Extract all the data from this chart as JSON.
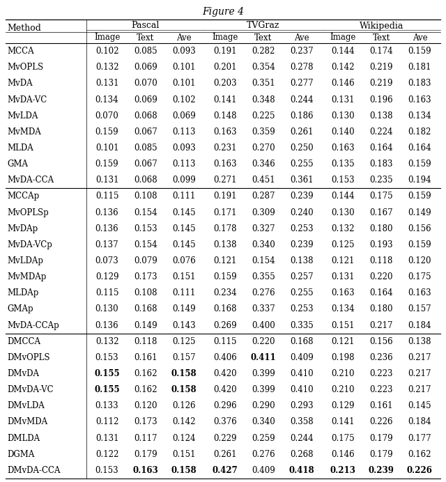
{
  "title": "Figure 4",
  "rows": [
    [
      "MCCA",
      "0.102",
      "0.085",
      "0.093",
      "0.191",
      "0.282",
      "0.237",
      "0.144",
      "0.174",
      "0.159",
      []
    ],
    [
      "MvOPLS",
      "0.132",
      "0.069",
      "0.101",
      "0.201",
      "0.354",
      "0.278",
      "0.142",
      "0.219",
      "0.181",
      []
    ],
    [
      "MvDA",
      "0.131",
      "0.070",
      "0.101",
      "0.203",
      "0.351",
      "0.277",
      "0.146",
      "0.219",
      "0.183",
      []
    ],
    [
      "MvDA-VC",
      "0.134",
      "0.069",
      "0.102",
      "0.141",
      "0.348",
      "0.244",
      "0.131",
      "0.196",
      "0.163",
      []
    ],
    [
      "MvLDA",
      "0.070",
      "0.068",
      "0.069",
      "0.148",
      "0.225",
      "0.186",
      "0.130",
      "0.138",
      "0.134",
      []
    ],
    [
      "MvMDA",
      "0.159",
      "0.067",
      "0.113",
      "0.163",
      "0.359",
      "0.261",
      "0.140",
      "0.224",
      "0.182",
      []
    ],
    [
      "MLDA",
      "0.101",
      "0.085",
      "0.093",
      "0.231",
      "0.270",
      "0.250",
      "0.163",
      "0.164",
      "0.164",
      []
    ],
    [
      "GMA",
      "0.159",
      "0.067",
      "0.113",
      "0.163",
      "0.346",
      "0.255",
      "0.135",
      "0.183",
      "0.159",
      []
    ],
    [
      "MvDA-CCA",
      "0.131",
      "0.068",
      "0.099",
      "0.271",
      "0.451",
      "0.361",
      "0.153",
      "0.235",
      "0.194",
      []
    ],
    [
      "MCCAp",
      "0.115",
      "0.108",
      "0.111",
      "0.191",
      "0.287",
      "0.239",
      "0.144",
      "0.175",
      "0.159",
      []
    ],
    [
      "MvOPLSp",
      "0.136",
      "0.154",
      "0.145",
      "0.171",
      "0.309",
      "0.240",
      "0.130",
      "0.167",
      "0.149",
      []
    ],
    [
      "MvDAp",
      "0.136",
      "0.153",
      "0.145",
      "0.178",
      "0.327",
      "0.253",
      "0.132",
      "0.180",
      "0.156",
      []
    ],
    [
      "MvDA-VCp",
      "0.137",
      "0.154",
      "0.145",
      "0.138",
      "0.340",
      "0.239",
      "0.125",
      "0.193",
      "0.159",
      []
    ],
    [
      "MvLDAp",
      "0.073",
      "0.079",
      "0.076",
      "0.121",
      "0.154",
      "0.138",
      "0.121",
      "0.118",
      "0.120",
      []
    ],
    [
      "MvMDAp",
      "0.129",
      "0.173",
      "0.151",
      "0.159",
      "0.355",
      "0.257",
      "0.131",
      "0.220",
      "0.175",
      []
    ],
    [
      "MLDAp",
      "0.115",
      "0.108",
      "0.111",
      "0.234",
      "0.276",
      "0.255",
      "0.163",
      "0.164",
      "0.163",
      []
    ],
    [
      "GMAp",
      "0.130",
      "0.168",
      "0.149",
      "0.168",
      "0.337",
      "0.253",
      "0.134",
      "0.180",
      "0.157",
      []
    ],
    [
      "MvDA-CCAp",
      "0.136",
      "0.149",
      "0.143",
      "0.269",
      "0.400",
      "0.335",
      "0.151",
      "0.217",
      "0.184",
      []
    ],
    [
      "DMCCA",
      "0.132",
      "0.118",
      "0.125",
      "0.115",
      "0.220",
      "0.168",
      "0.121",
      "0.156",
      "0.138",
      []
    ],
    [
      "DMvOPLS",
      "0.153",
      "0.161",
      "0.157",
      "0.406",
      "0.411",
      "0.409",
      "0.198",
      "0.236",
      "0.217",
      [
        5
      ]
    ],
    [
      "DMvDA",
      "0.155",
      "0.162",
      "0.158",
      "0.420",
      "0.399",
      "0.410",
      "0.210",
      "0.223",
      "0.217",
      [
        1,
        3
      ]
    ],
    [
      "DMvDA-VC",
      "0.155",
      "0.162",
      "0.158",
      "0.420",
      "0.399",
      "0.410",
      "0.210",
      "0.223",
      "0.217",
      [
        1,
        3
      ]
    ],
    [
      "DMvLDA",
      "0.133",
      "0.120",
      "0.126",
      "0.296",
      "0.290",
      "0.293",
      "0.129",
      "0.161",
      "0.145",
      []
    ],
    [
      "DMvMDA",
      "0.112",
      "0.173",
      "0.142",
      "0.376",
      "0.340",
      "0.358",
      "0.141",
      "0.226",
      "0.184",
      []
    ],
    [
      "DMLDA",
      "0.131",
      "0.117",
      "0.124",
      "0.229",
      "0.259",
      "0.244",
      "0.175",
      "0.179",
      "0.177",
      []
    ],
    [
      "DGMA",
      "0.122",
      "0.179",
      "0.151",
      "0.261",
      "0.276",
      "0.268",
      "0.146",
      "0.179",
      "0.162",
      []
    ],
    [
      "DMvDA-CCA",
      "0.153",
      "0.163",
      "0.158",
      "0.427",
      "0.409",
      "0.418",
      "0.213",
      "0.239",
      "0.226",
      [
        2,
        3,
        4,
        6,
        7,
        8,
        9
      ]
    ]
  ],
  "separator_after": [
    8,
    17
  ],
  "col_groups": [
    {
      "name": "Pascal",
      "cols": [
        1,
        2,
        3
      ]
    },
    {
      "name": "TVGraz",
      "cols": [
        4,
        5,
        6
      ]
    },
    {
      "name": "Wikipedia",
      "cols": [
        7,
        8,
        9
      ]
    }
  ],
  "subheaders": [
    "Image",
    "Text",
    "Ave",
    "Image",
    "Text",
    "Ave",
    "Image",
    "Text",
    "Ave"
  ]
}
